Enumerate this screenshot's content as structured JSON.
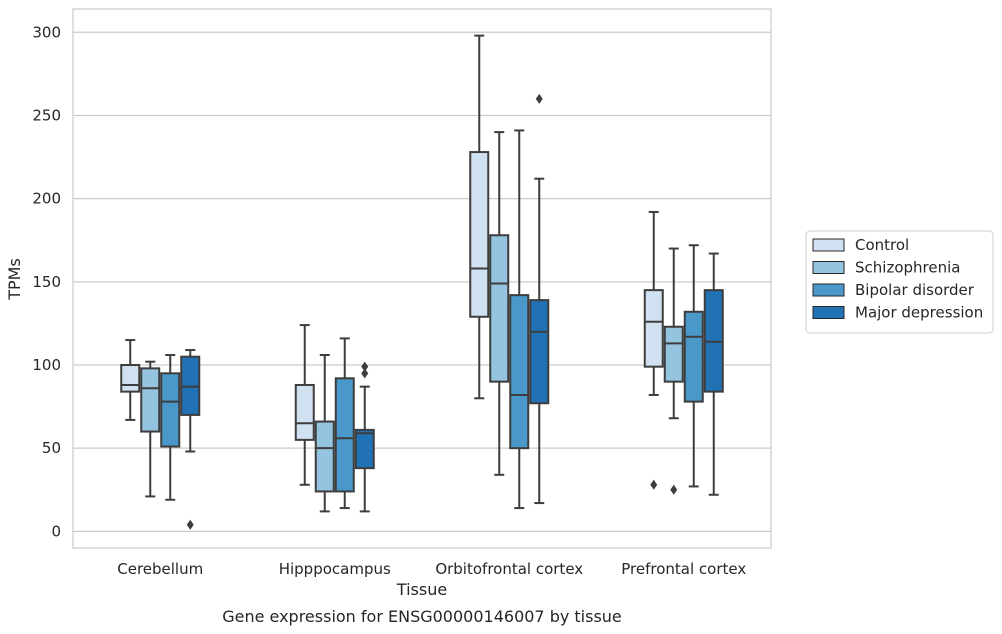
{
  "chart_data": {
    "type": "box",
    "title": "",
    "caption": "Gene expression for ENSG00000146007 by tissue",
    "xlabel": "Tissue",
    "ylabel": "TPMs",
    "ylim": [
      -10,
      314
    ],
    "yticks": [
      0,
      50,
      100,
      150,
      200,
      250,
      300
    ],
    "grid": "horizontal",
    "legend_position": "right",
    "categories": [
      "Cerebellum",
      "Hipppocampus",
      "Orbitofrontal cortex",
      "Prefrontal cortex"
    ],
    "series": [
      {
        "name": "Control",
        "color": "#d0e1f2",
        "boxes": [
          {
            "whisker_low": 67,
            "q1": 84,
            "median": 88,
            "q3": 100,
            "whisker_high": 115,
            "outliers": []
          },
          {
            "whisker_low": 28,
            "q1": 55,
            "median": 65,
            "q3": 88,
            "whisker_high": 124,
            "outliers": []
          },
          {
            "whisker_low": 80,
            "q1": 129,
            "median": 158,
            "q3": 228,
            "whisker_high": 298,
            "outliers": []
          },
          {
            "whisker_low": 82,
            "q1": 99,
            "median": 126,
            "q3": 145,
            "whisker_high": 192,
            "outliers": [
              28
            ]
          }
        ]
      },
      {
        "name": "Schizophrenia",
        "color": "#94c4df",
        "boxes": [
          {
            "whisker_low": 21,
            "q1": 60,
            "median": 86,
            "q3": 98,
            "whisker_high": 102,
            "outliers": []
          },
          {
            "whisker_low": 12,
            "q1": 24,
            "median": 50,
            "q3": 66,
            "whisker_high": 106,
            "outliers": []
          },
          {
            "whisker_low": 34,
            "q1": 90,
            "median": 149,
            "q3": 178,
            "whisker_high": 240,
            "outliers": []
          },
          {
            "whisker_low": 68,
            "q1": 90,
            "median": 113,
            "q3": 123,
            "whisker_high": 170,
            "outliers": [
              25
            ]
          }
        ]
      },
      {
        "name": "Bipolar disorder",
        "color": "#4a98c9",
        "boxes": [
          {
            "whisker_low": 19,
            "q1": 51,
            "median": 78,
            "q3": 95,
            "whisker_high": 106,
            "outliers": []
          },
          {
            "whisker_low": 14,
            "q1": 24,
            "median": 56,
            "q3": 92,
            "whisker_high": 116,
            "outliers": []
          },
          {
            "whisker_low": 14,
            "q1": 50,
            "median": 82,
            "q3": 142,
            "whisker_high": 241,
            "outliers": []
          },
          {
            "whisker_low": 27,
            "q1": 78,
            "median": 117,
            "q3": 132,
            "whisker_high": 172,
            "outliers": []
          }
        ]
      },
      {
        "name": "Major depression",
        "color": "#2171b5",
        "boxes": [
          {
            "whisker_low": 48,
            "q1": 70,
            "median": 87,
            "q3": 105,
            "whisker_high": 109,
            "outliers": [
              4
            ]
          },
          {
            "whisker_low": 12,
            "q1": 38,
            "median": 59,
            "q3": 61,
            "whisker_high": 87,
            "outliers": [
              95,
              99
            ]
          },
          {
            "whisker_low": 17,
            "q1": 77,
            "median": 120,
            "q3": 139,
            "whisker_high": 212,
            "outliers": [
              260
            ]
          },
          {
            "whisker_low": 22,
            "q1": 84,
            "median": 114,
            "q3": 145,
            "whisker_high": 167,
            "outliers": []
          }
        ]
      }
    ]
  }
}
